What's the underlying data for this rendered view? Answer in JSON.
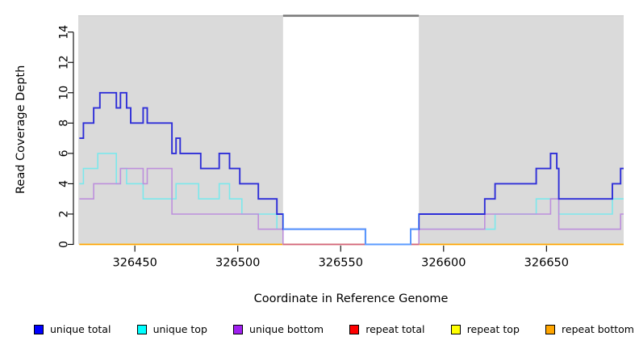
{
  "chart_data": {
    "type": "line",
    "subtype": "step-coverage",
    "title": "",
    "xlabel": "Coordinate in Reference Genome",
    "ylabel": "Read Coverage Depth",
    "xlim": [
      326422.5,
      326687.5
    ],
    "ylim": [
      0,
      15.05
    ],
    "x_ticks": [
      326450,
      326500,
      326550,
      326600,
      326650
    ],
    "y_ticks": [
      0,
      2,
      4,
      6,
      8,
      10,
      12,
      14
    ],
    "grid": false,
    "legend_position": "bottom",
    "shaded_regions": [
      [
        326422.5,
        326522
      ],
      [
        326588,
        326687.5
      ]
    ],
    "shaded_region_color": "#dadada",
    "repeat_region": [
      326522,
      326588
    ],
    "repeat_region_top_line_color": "#787878",
    "series": [
      {
        "name": "unique total",
        "color": "#2e2ed8",
        "color_in_repeat_region": "#5b9bff",
        "steps": [
          [
            326423,
            7
          ],
          [
            326425,
            8
          ],
          [
            326430,
            9
          ],
          [
            326433,
            10
          ],
          [
            326441,
            9
          ],
          [
            326443,
            10
          ],
          [
            326446,
            9
          ],
          [
            326448,
            8
          ],
          [
            326454,
            9
          ],
          [
            326456,
            8
          ],
          [
            326468,
            6
          ],
          [
            326470,
            7
          ],
          [
            326472,
            6
          ],
          [
            326482,
            5
          ],
          [
            326491,
            6
          ],
          [
            326496,
            5
          ],
          [
            326501,
            4
          ],
          [
            326510,
            3
          ],
          [
            326519,
            2
          ],
          [
            326522,
            1
          ],
          [
            326562,
            0
          ],
          [
            326584,
            1
          ],
          [
            326588,
            2
          ],
          [
            326620,
            3
          ],
          [
            326625,
            4
          ],
          [
            326645,
            5
          ],
          [
            326652,
            6
          ],
          [
            326655,
            5
          ],
          [
            326656,
            3
          ],
          [
            326682,
            4
          ],
          [
            326686,
            5
          ]
        ],
        "x_end": 326687.5
      },
      {
        "name": "unique top",
        "color": "#7ce8ec",
        "steps": [
          [
            326423,
            4
          ],
          [
            326425,
            5
          ],
          [
            326432,
            6
          ],
          [
            326441,
            4
          ],
          [
            326443,
            5
          ],
          [
            326446,
            4
          ],
          [
            326454,
            3
          ],
          [
            326470,
            4
          ],
          [
            326481,
            3
          ],
          [
            326491,
            4
          ],
          [
            326496,
            3
          ],
          [
            326502,
            2
          ],
          [
            326519,
            1
          ],
          [
            326562,
            0
          ],
          [
            326584,
            1
          ],
          [
            326625,
            2
          ],
          [
            326645,
            3
          ],
          [
            326656,
            2
          ],
          [
            326682,
            3
          ]
        ],
        "x_end": 326687.5
      },
      {
        "name": "unique bottom",
        "color": "#bd8fdc",
        "steps": [
          [
            326423,
            3
          ],
          [
            326430,
            4
          ],
          [
            326443,
            5
          ],
          [
            326454,
            4
          ],
          [
            326456,
            5
          ],
          [
            326468,
            2
          ],
          [
            326510,
            1
          ],
          [
            326522,
            0
          ],
          [
            326588,
            1
          ],
          [
            326620,
            2
          ],
          [
            326652,
            3
          ],
          [
            326656,
            1
          ],
          [
            326686,
            2
          ]
        ],
        "x_end": 326687.5
      },
      {
        "name": "repeat total",
        "color": "#d4617c",
        "steps": [
          [
            326423,
            0
          ]
        ],
        "x_end": 326687.5
      },
      {
        "name": "repeat top",
        "color": "#ffff00",
        "steps": [
          [
            326423,
            0
          ]
        ],
        "x_end": 326687.5
      },
      {
        "name": "repeat bottom",
        "color": "#ff9c00",
        "steps": [
          [
            326423,
            0
          ]
        ],
        "x_end": 326687.5
      }
    ],
    "legend": [
      {
        "label": "unique total",
        "swatch": "#0000ff"
      },
      {
        "label": "unique top",
        "swatch": "#00ffff"
      },
      {
        "label": "unique bottom",
        "swatch": "#a020f0"
      },
      {
        "label": "repeat total",
        "swatch": "#ff0000"
      },
      {
        "label": "repeat top",
        "swatch": "#ffff00"
      },
      {
        "label": "repeat bottom",
        "swatch": "#ffa500"
      }
    ]
  }
}
